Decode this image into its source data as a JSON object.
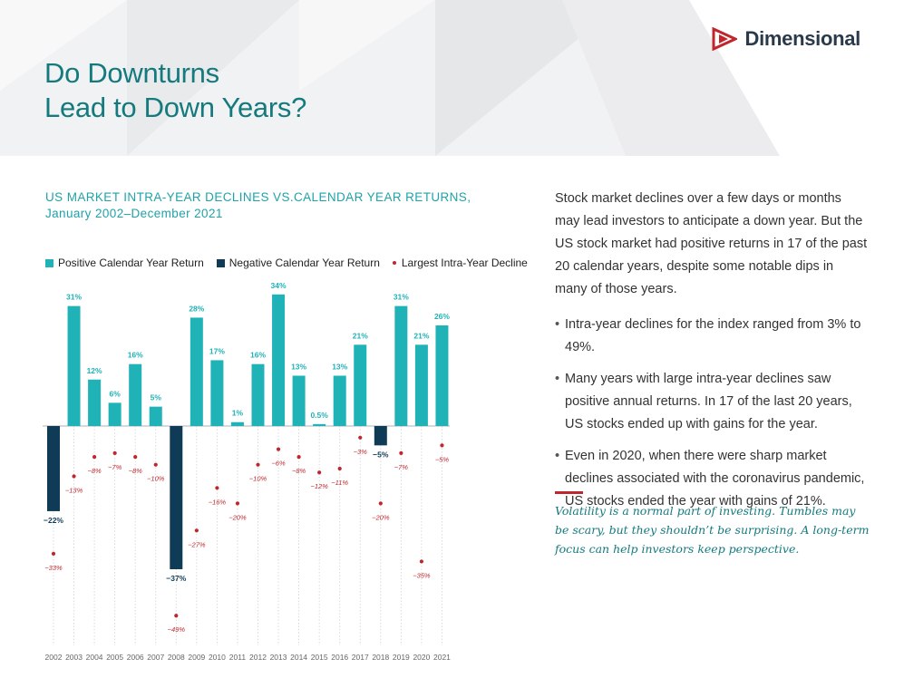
{
  "header": {
    "title_lines": [
      "Do Downturns",
      "Lead to Down Years?"
    ],
    "brand": "Dimensional",
    "colors": {
      "title": "#147a7e",
      "brand_logo": "#c0272d"
    }
  },
  "chart_data": {
    "type": "bar",
    "title_lines": [
      "US MARKET INTRA-YEAR DECLINES VS.CALENDAR YEAR RETURNS,",
      "January 2002–December 2021"
    ],
    "categories": [
      "2002",
      "2003",
      "2004",
      "2005",
      "2006",
      "2007",
      "2008",
      "2009",
      "2010",
      "2011",
      "2012",
      "2013",
      "2014",
      "2015",
      "2016",
      "2017",
      "2018",
      "2019",
      "2020",
      "2021"
    ],
    "series": [
      {
        "name": "Calendar Year Return",
        "type": "bar",
        "values": [
          -22,
          31,
          12,
          6,
          16,
          5,
          -37,
          28,
          17,
          1,
          16,
          34,
          13,
          0.5,
          13,
          21,
          -5,
          31,
          21,
          26
        ]
      },
      {
        "name": "Largest Intra-Year Decline",
        "type": "point",
        "values": [
          -33,
          -13,
          -8,
          -7,
          -8,
          -10,
          -49,
          -27,
          -16,
          -20,
          -10,
          -6,
          -8,
          -12,
          -11,
          -3,
          -20,
          -7,
          -35,
          -5
        ]
      }
    ],
    "return_labels": [
      "−22%",
      "31%",
      "12%",
      "6%",
      "16%",
      "5%",
      "−37%",
      "28%",
      "17%",
      "1%",
      "16%",
      "34%",
      "13%",
      "0.5%",
      "13%",
      "21%",
      "−5%",
      "31%",
      "21%",
      "26%"
    ],
    "decline_labels": [
      "−33%",
      "−13%",
      "−8%",
      "−7%",
      "−8%",
      "−10%",
      "−49%",
      "−27%",
      "−16%",
      "−20%",
      "−10%",
      "−6%",
      "−8%",
      "−12%",
      "−11%",
      "−3%",
      "−20%",
      "−7%",
      "−35%",
      "−5%"
    ],
    "legend": [
      {
        "label": "Positive Calendar Year Return",
        "kind": "swatch",
        "color": "#1fb2b7"
      },
      {
        "label": "Negative Calendar Year Return",
        "kind": "swatch",
        "color": "#0f3b57"
      },
      {
        "label": "Largest Intra-Year Decline",
        "kind": "dot",
        "color": "#c0272d"
      }
    ],
    "legend_position": "top",
    "colors": {
      "positive": "#1fb2b7",
      "negative": "#0f3b57",
      "decline": "#c0272d"
    },
    "ylim": [
      -50,
      35
    ],
    "grid": false
  },
  "text": {
    "intro": "Stock market declines over a few days or months may lead investors to anticipate a down year. But the US stock market had positive returns in 17 of the past 20 calendar years, despite some notable dips in many of those years.",
    "bullets": [
      "Intra-year declines for the index ranged from 3% to 49%.",
      "Many years with large intra-year declines saw positive annual returns. In 17 of the last 20 years, US stocks ended up with gains for the year.",
      "Even in 2020, when there were sharp market declines associated with the coronavirus pandemic, US stocks ended the year with gains of 21%."
    ],
    "quote": "Volatility is a normal part of investing. Tumbles may be scary, but they shouldn’t be surprising. A long-term focus can help investors keep perspective."
  }
}
